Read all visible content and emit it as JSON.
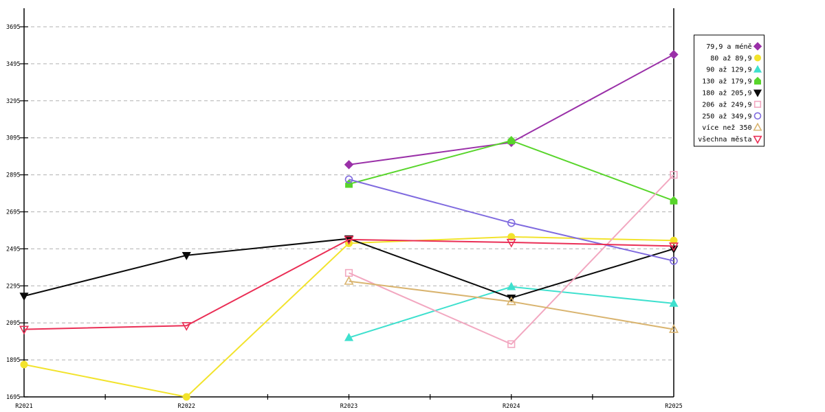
{
  "page": {
    "background": "#ffffff"
  },
  "chart_data": {
    "type": "line",
    "title": "",
    "xlabel": "",
    "ylabel": "",
    "categories": [
      "R2021",
      "R2022",
      "R2023",
      "R2024",
      "R2025"
    ],
    "ylim": [
      1695,
      3695
    ],
    "yticks": [
      1695,
      1895,
      2095,
      2295,
      2495,
      2695,
      2895,
      3095,
      3295,
      3495,
      3695
    ],
    "grid": "horizontal-dashed",
    "grid_color": "#b0b0b0",
    "axis_color": "#000000",
    "legend_position": "top-right",
    "series": [
      {
        "name": "79,9 a méně",
        "color": "#9a30a8",
        "marker": "diamond",
        "style": "filled",
        "values": [
          null,
          null,
          2950,
          3070,
          3545
        ]
      },
      {
        "name": "80 až 89,9",
        "color": "#f2e32c",
        "marker": "circle",
        "style": "filled",
        "values": [
          1870,
          1695,
          2525,
          2560,
          2540
        ]
      },
      {
        "name": "90 až 129,9",
        "color": "#3ee0ce",
        "marker": "triangle-up",
        "style": "filled",
        "values": [
          null,
          null,
          2015,
          2290,
          2200
        ]
      },
      {
        "name": "130 až 179,9",
        "color": "#58d52b",
        "marker": "pentagon",
        "style": "filled",
        "values": [
          null,
          null,
          2845,
          3080,
          2755
        ]
      },
      {
        "name": "180 až 205,9",
        "color": "#0a0a0a",
        "marker": "triangle-down",
        "style": "filled",
        "values": [
          2240,
          2460,
          2550,
          2230,
          2495
        ]
      },
      {
        "name": "206 až 249,9",
        "color": "#f2a7c0",
        "marker": "square",
        "style": "open",
        "values": [
          null,
          null,
          2365,
          1980,
          2895
        ]
      },
      {
        "name": "250 až 349,9",
        "color": "#7f6adf",
        "marker": "circle",
        "style": "open",
        "values": [
          null,
          null,
          2870,
          2635,
          2430
        ]
      },
      {
        "name": "více než 350",
        "color": "#d9b46f",
        "marker": "triangle-up",
        "style": "open",
        "values": [
          null,
          null,
          2320,
          2210,
          2060
        ]
      },
      {
        "name": "všechna města",
        "color": "#ea2e55",
        "marker": "triangle-down",
        "style": "open",
        "values": [
          2060,
          2080,
          2545,
          2530,
          2510
        ]
      }
    ]
  }
}
